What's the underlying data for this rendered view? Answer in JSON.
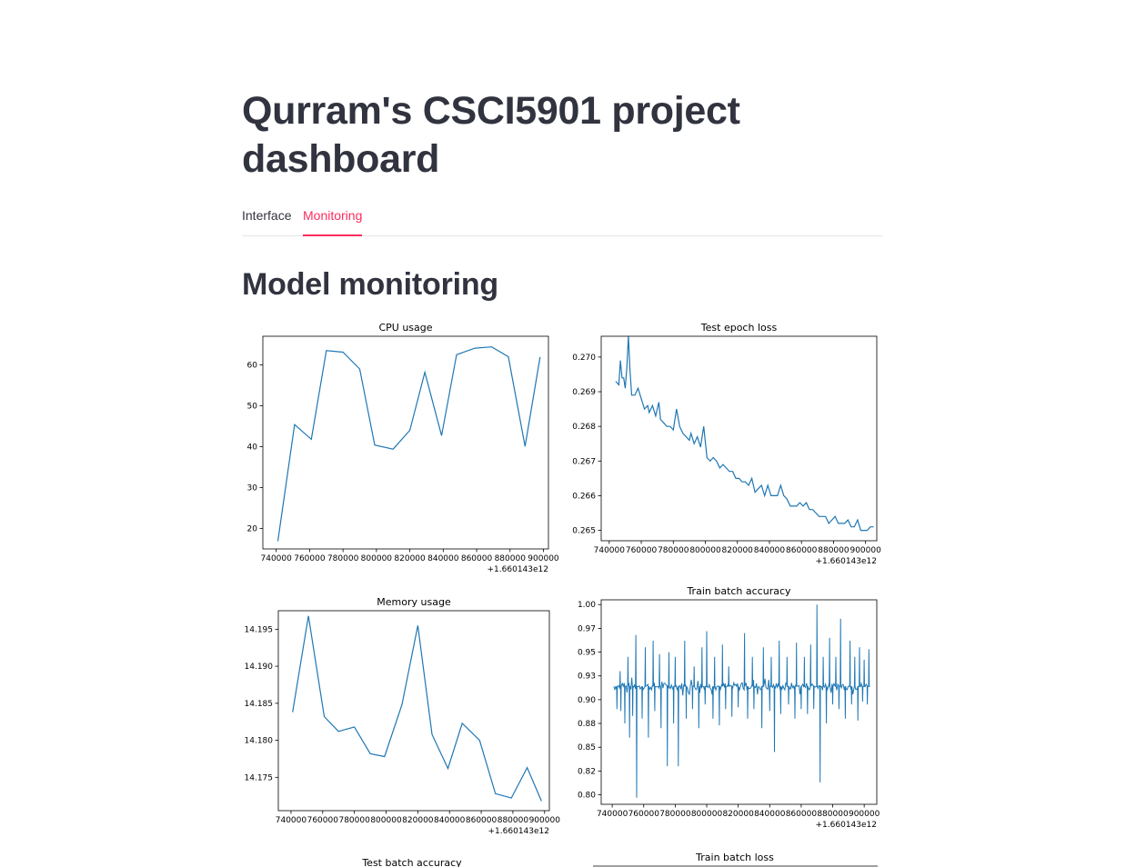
{
  "app": {
    "title": "Qurram's CSCI5901 project dashboard"
  },
  "tabs": [
    {
      "label": "Interface",
      "active": false
    },
    {
      "label": "Monitoring",
      "active": true
    }
  ],
  "section": {
    "title": "Model monitoring"
  },
  "colors": {
    "accent": "#ff2b5e",
    "line": "#1f77b4"
  },
  "chart_data": [
    {
      "id": "cpu",
      "type": "line",
      "title": "CPU usage",
      "x_offset_label": "+1.660143e12",
      "xlim": [
        732000,
        903000
      ],
      "ylim": [
        15,
        67
      ],
      "xticks": [
        740000,
        760000,
        780000,
        800000,
        820000,
        840000,
        860000,
        880000,
        900000
      ],
      "yticks": [
        20,
        30,
        40,
        50,
        60
      ],
      "x": [
        741000,
        751000,
        761000,
        770000,
        780000,
        790000,
        799000,
        810000,
        820000,
        829000,
        839000,
        848000,
        859000,
        869000,
        879000,
        889000,
        898000
      ],
      "y": [
        16.9,
        45.4,
        41.8,
        63.5,
        63.1,
        59.0,
        40.4,
        39.4,
        44.0,
        58.2,
        42.7,
        62.5,
        64.1,
        64.4,
        62.0,
        40.1,
        61.9
      ]
    },
    {
      "id": "test_epoch_loss",
      "type": "line",
      "title": "Test epoch loss",
      "x_offset_label": "+1.660143e12",
      "xlim": [
        735000,
        907000
      ],
      "ylim": [
        0.2647,
        0.2706
      ],
      "xticks": [
        740000,
        760000,
        780000,
        800000,
        820000,
        840000,
        860000,
        880000,
        900000
      ],
      "yticks": [
        0.265,
        0.266,
        0.267,
        0.268,
        0.269,
        0.27
      ],
      "x": [
        744000,
        746000,
        747000,
        748000,
        749000,
        750000,
        751000,
        752000,
        753000,
        754000,
        756000,
        758000,
        760000,
        762000,
        764000,
        765000,
        767000,
        769000,
        771000,
        772000,
        774000,
        776000,
        778000,
        780000,
        782000,
        784000,
        786000,
        788000,
        790000,
        791000,
        793000,
        795000,
        797000,
        799000,
        801000,
        803000,
        805000,
        807000,
        809000,
        811000,
        813000,
        815000,
        817000,
        819000,
        821000,
        823000,
        825000,
        827000,
        829000,
        831000,
        833000,
        835000,
        837000,
        839000,
        841000,
        843000,
        845000,
        847000,
        849000,
        851000,
        853000,
        855000,
        857000,
        859000,
        861000,
        863000,
        865000,
        867000,
        869000,
        871000,
        873000,
        875000,
        877000,
        879000,
        881000,
        883000,
        885000,
        887000,
        889000,
        891000,
        893000,
        895000,
        897000,
        899000,
        901000,
        903000,
        905000
      ],
      "y": [
        0.2693,
        0.2692,
        0.2699,
        0.2694,
        0.2694,
        0.2691,
        0.2697,
        0.2706,
        0.2696,
        0.2689,
        0.2689,
        0.2691,
        0.2688,
        0.2685,
        0.2686,
        0.2684,
        0.2686,
        0.2683,
        0.2687,
        0.2682,
        0.2681,
        0.268,
        0.268,
        0.2679,
        0.2685,
        0.268,
        0.2678,
        0.2677,
        0.2676,
        0.2678,
        0.2675,
        0.2677,
        0.2674,
        0.268,
        0.2671,
        0.267,
        0.2671,
        0.267,
        0.2668,
        0.2669,
        0.2668,
        0.2667,
        0.2667,
        0.2665,
        0.2665,
        0.2664,
        0.2664,
        0.2663,
        0.2665,
        0.2661,
        0.2662,
        0.2663,
        0.266,
        0.2663,
        0.266,
        0.266,
        0.266,
        0.2663,
        0.266,
        0.2659,
        0.2657,
        0.2657,
        0.2657,
        0.2658,
        0.2657,
        0.2658,
        0.2656,
        0.2656,
        0.2655,
        0.2654,
        0.2654,
        0.2654,
        0.2652,
        0.2653,
        0.2654,
        0.2652,
        0.2652,
        0.2652,
        0.2653,
        0.2651,
        0.2651,
        0.2653,
        0.265,
        0.265,
        0.265,
        0.2651,
        0.2651
      ]
    },
    {
      "id": "memory",
      "type": "line",
      "title": "Memory usage",
      "x_offset_label": "+1.660143e12",
      "xlim": [
        732000,
        903000
      ],
      "ylim": [
        14.1705,
        14.1975
      ],
      "xticks": [
        740000,
        760000,
        780000,
        800000,
        820000,
        840000,
        860000,
        880000,
        900000
      ],
      "yticks": [
        14.175,
        14.18,
        14.185,
        14.19,
        14.195
      ],
      "x": [
        741000,
        751000,
        761000,
        770000,
        780000,
        790000,
        799000,
        810000,
        820000,
        829000,
        839000,
        848000,
        859000,
        869000,
        879000,
        889000,
        898000
      ],
      "y": [
        14.1838,
        14.1968,
        14.1832,
        14.1812,
        14.1818,
        14.1782,
        14.1778,
        14.1848,
        14.1955,
        14.1808,
        14.1762,
        14.1823,
        14.18,
        14.1728,
        14.1722,
        14.1763,
        14.1718
      ]
    },
    {
      "id": "train_batch_accuracy",
      "type": "line",
      "title": "Train batch accuracy",
      "x_offset_label": "+1.660143e12",
      "xlim": [
        733000,
        908000
      ],
      "ylim": [
        0.79,
        1.005
      ],
      "xticks": [
        740000,
        760000,
        780000,
        800000,
        820000,
        840000,
        860000,
        880000,
        900000
      ],
      "yticks": [
        0.8,
        0.825,
        0.85,
        0.875,
        0.9,
        0.925,
        0.95,
        0.975,
        1.0
      ],
      "x_start": 741000,
      "x_end": 904000,
      "baseline": 0.914,
      "noise": 0.004,
      "spikes_up": [
        {
          "x": 745000,
          "y": 0.93
        },
        {
          "x": 750000,
          "y": 0.945
        },
        {
          "x": 755000,
          "y": 0.968
        },
        {
          "x": 761000,
          "y": 0.955
        },
        {
          "x": 766000,
          "y": 0.962
        },
        {
          "x": 770000,
          "y": 0.948
        },
        {
          "x": 776000,
          "y": 0.95
        },
        {
          "x": 780000,
          "y": 0.945
        },
        {
          "x": 786000,
          "y": 0.962
        },
        {
          "x": 792000,
          "y": 0.935
        },
        {
          "x": 797000,
          "y": 0.955
        },
        {
          "x": 800000,
          "y": 0.972
        },
        {
          "x": 805000,
          "y": 0.945
        },
        {
          "x": 810000,
          "y": 0.958
        },
        {
          "x": 814000,
          "y": 0.935
        },
        {
          "x": 820000,
          "y": 0.962
        },
        {
          "x": 824000,
          "y": 0.97
        },
        {
          "x": 829000,
          "y": 0.945
        },
        {
          "x": 836000,
          "y": 0.955
        },
        {
          "x": 841000,
          "y": 0.945
        },
        {
          "x": 846000,
          "y": 0.962
        },
        {
          "x": 851000,
          "y": 0.945
        },
        {
          "x": 857000,
          "y": 0.96
        },
        {
          "x": 862000,
          "y": 0.945
        },
        {
          "x": 866000,
          "y": 0.958
        },
        {
          "x": 870000,
          "y": 1.0
        },
        {
          "x": 874000,
          "y": 0.945
        },
        {
          "x": 878000,
          "y": 0.965
        },
        {
          "x": 882000,
          "y": 0.945
        },
        {
          "x": 885000,
          "y": 0.985
        },
        {
          "x": 888000,
          "y": 0.95
        },
        {
          "x": 891000,
          "y": 0.962
        },
        {
          "x": 894000,
          "y": 0.945
        },
        {
          "x": 897000,
          "y": 0.955
        },
        {
          "x": 900000,
          "y": 0.942
        },
        {
          "x": 903000,
          "y": 0.953
        }
      ],
      "spikes_down": [
        {
          "x": 743000,
          "y": 0.89
        },
        {
          "x": 745500,
          "y": 0.888
        },
        {
          "x": 748000,
          "y": 0.875
        },
        {
          "x": 751000,
          "y": 0.86
        },
        {
          "x": 753000,
          "y": 0.883
        },
        {
          "x": 755500,
          "y": 0.797
        },
        {
          "x": 759000,
          "y": 0.88
        },
        {
          "x": 763000,
          "y": 0.86
        },
        {
          "x": 767000,
          "y": 0.888
        },
        {
          "x": 771000,
          "y": 0.87
        },
        {
          "x": 775000,
          "y": 0.83
        },
        {
          "x": 779000,
          "y": 0.875
        },
        {
          "x": 782000,
          "y": 0.83
        },
        {
          "x": 787000,
          "y": 0.88
        },
        {
          "x": 791000,
          "y": 0.89
        },
        {
          "x": 795000,
          "y": 0.87
        },
        {
          "x": 799000,
          "y": 0.895
        },
        {
          "x": 804000,
          "y": 0.88
        },
        {
          "x": 808000,
          "y": 0.873
        },
        {
          "x": 812000,
          "y": 0.89
        },
        {
          "x": 816000,
          "y": 0.882
        },
        {
          "x": 820000,
          "y": 0.892
        },
        {
          "x": 826000,
          "y": 0.88
        },
        {
          "x": 830000,
          "y": 0.89
        },
        {
          "x": 835000,
          "y": 0.87
        },
        {
          "x": 840000,
          "y": 0.888
        },
        {
          "x": 843000,
          "y": 0.845
        },
        {
          "x": 847000,
          "y": 0.885
        },
        {
          "x": 852000,
          "y": 0.895
        },
        {
          "x": 856000,
          "y": 0.88
        },
        {
          "x": 860000,
          "y": 0.89
        },
        {
          "x": 864000,
          "y": 0.885
        },
        {
          "x": 868000,
          "y": 0.89
        },
        {
          "x": 872000,
          "y": 0.813
        },
        {
          "x": 876000,
          "y": 0.875
        },
        {
          "x": 880000,
          "y": 0.895
        },
        {
          "x": 884000,
          "y": 0.89
        },
        {
          "x": 888000,
          "y": 0.88
        },
        {
          "x": 892000,
          "y": 0.895
        },
        {
          "x": 896000,
          "y": 0.878
        },
        {
          "x": 899000,
          "y": 0.898
        },
        {
          "x": 902000,
          "y": 0.895
        }
      ]
    },
    {
      "id": "test_batch_accuracy",
      "type": "line",
      "title": "Test batch accuracy",
      "x": [],
      "y": []
    },
    {
      "id": "train_batch_loss",
      "type": "line",
      "title": "Train batch loss",
      "x": [],
      "y": []
    }
  ]
}
